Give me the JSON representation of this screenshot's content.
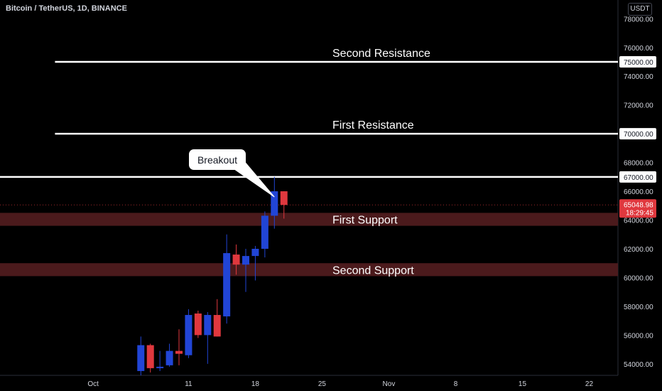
{
  "header": {
    "title": "Bitcoin / TetherUS, 1D, BINANCE",
    "unit": "USDT"
  },
  "chart_data": {
    "type": "candlestick",
    "y_ticks": [
      54000,
      56000,
      58000,
      60000,
      62000,
      64000,
      66000,
      68000,
      70000,
      72000,
      74000,
      76000,
      78000
    ],
    "y_tick_labels": [
      "54000.00",
      "56000.00",
      "58000.00",
      "60000.00",
      "62000.00",
      "64000.00",
      "66000.00",
      "68000.00",
      "70000.00",
      "72000.00",
      "74000.00",
      "76000.00",
      "78000.00"
    ],
    "ylim": [
      53200,
      79300
    ],
    "x_ticks": [
      {
        "label": "Oct",
        "day": 1
      },
      {
        "label": "11",
        "day": 11
      },
      {
        "label": "18",
        "day": 18
      },
      {
        "label": "25",
        "day": 25
      },
      {
        "label": "Nov",
        "day": 32
      },
      {
        "label": "8",
        "day": 39
      },
      {
        "label": "15",
        "day": 46
      },
      {
        "label": "22",
        "day": 53
      }
    ],
    "up_color": "#2145d6",
    "down_color": "#e0383e",
    "candles": [
      {
        "day": 6,
        "open": 53500,
        "high": 55900,
        "low": 53200,
        "close": 55300
      },
      {
        "day": 7,
        "open": 55300,
        "high": 55400,
        "low": 53400,
        "close": 53700
      },
      {
        "day": 8,
        "open": 53700,
        "high": 54900,
        "low": 53500,
        "close": 53800
      },
      {
        "day": 9,
        "open": 53900,
        "high": 55400,
        "low": 53800,
        "close": 54900
      },
      {
        "day": 10,
        "open": 54900,
        "high": 56400,
        "low": 53900,
        "close": 54700
      },
      {
        "day": 11,
        "open": 54600,
        "high": 57800,
        "low": 54400,
        "close": 57400
      },
      {
        "day": 12,
        "open": 57500,
        "high": 57700,
        "low": 55800,
        "close": 56000
      },
      {
        "day": 13,
        "open": 56000,
        "high": 57600,
        "low": 54000,
        "close": 57400
      },
      {
        "day": 14,
        "open": 57400,
        "high": 58500,
        "low": 55900,
        "close": 55900
      },
      {
        "day": 15,
        "open": 57300,
        "high": 63000,
        "low": 56800,
        "close": 61700
      },
      {
        "day": 16,
        "open": 61600,
        "high": 62300,
        "low": 60200,
        "close": 60900
      },
      {
        "day": 17,
        "open": 60900,
        "high": 62000,
        "low": 59000,
        "close": 61500
      },
      {
        "day": 18,
        "open": 61500,
        "high": 62200,
        "low": 59800,
        "close": 62000
      },
      {
        "day": 19,
        "open": 62000,
        "high": 64600,
        "low": 61400,
        "close": 64300
      },
      {
        "day": 20,
        "open": 64300,
        "high": 67000,
        "low": 63400,
        "close": 66000
      },
      {
        "day": 21,
        "open": 66000,
        "high": 66000,
        "low": 64100,
        "close": 65049
      }
    ],
    "last_price": {
      "value": 65048.98,
      "label": "65048.98",
      "countdown": "18:29:45"
    },
    "horizontal_lines": [
      {
        "value": 75000,
        "label": "Second Resistance",
        "axis_label": "75000.00",
        "from_day": -3
      },
      {
        "value": 70000,
        "label": "First Resistance",
        "axis_label": "70000.00",
        "from_day": -3
      },
      {
        "value": 67000,
        "label": "",
        "axis_label": "67000.00",
        "from_day": -12
      }
    ],
    "zones": [
      {
        "from": 63600,
        "to": 64500,
        "label": "First Support"
      },
      {
        "from": 60100,
        "to": 61000,
        "label": "Second Support"
      }
    ],
    "callout": {
      "text": "Breakout",
      "target_day": 20,
      "target_value": 66000
    },
    "grid": false
  },
  "colors": {
    "background": "#000000",
    "zone": "#4b1a1c",
    "line": "#ffffff",
    "axis_text": "#d1d4dc",
    "price_badge": "#e0383e"
  }
}
